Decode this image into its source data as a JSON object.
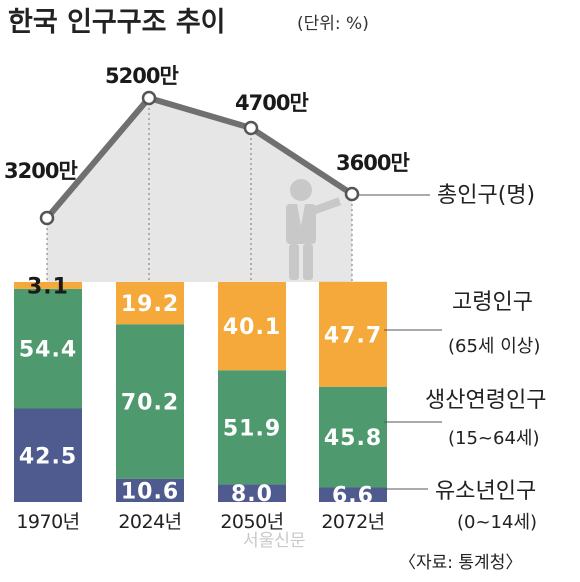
{
  "title": "한국 인구구조 추이",
  "unit_note": "(단위: %)",
  "colors": {
    "elderly": "#F5A93B",
    "working": "#4E9A6E",
    "youth": "#4F5B8E",
    "line": "#707070",
    "area": "#E6E6E6",
    "marker_fill": "#ffffff"
  },
  "chart_data": [
    {
      "type": "line",
      "title": "",
      "series": [
        {
          "name": "총인구(명)",
          "values": [
            3200,
            5200,
            4700,
            3600
          ]
        }
      ],
      "categories": [
        "1970년",
        "2024년",
        "2050년",
        "2072년"
      ],
      "value_labels": [
        "3200만",
        "5200만",
        "4700만",
        "3600만"
      ],
      "ylim": [
        2000,
        5500
      ]
    },
    {
      "type": "bar",
      "stacked": true,
      "categories": [
        "1970년",
        "2024년",
        "2050년",
        "2072년"
      ],
      "series": [
        {
          "name": "유소년인구",
          "range": "(0~14세)",
          "values": [
            42.5,
            10.6,
            8.0,
            6.6
          ],
          "labels": [
            "42.5",
            "10.6",
            "8.0",
            "6.6"
          ]
        },
        {
          "name": "생산연령인구",
          "range": "(15~64세)",
          "values": [
            54.4,
            70.2,
            51.9,
            45.8
          ],
          "labels": [
            "54.4",
            "70.2",
            "51.9",
            "45.8"
          ]
        },
        {
          "name": "고령인구",
          "range": "(65세 이상)",
          "values": [
            3.1,
            19.2,
            40.1,
            47.7
          ],
          "labels": [
            "3.1",
            "19.2",
            "40.1",
            "47.7"
          ]
        }
      ],
      "ylim": [
        0,
        100
      ]
    }
  ],
  "legend": {
    "total": "총인구(명)",
    "elderly": {
      "label": "고령인구",
      "range": "(65세 이상)"
    },
    "working": {
      "label": "생산연령인구",
      "range": "(15~64세)"
    },
    "youth": {
      "label": "유소년인구",
      "range": "(0~14세)"
    }
  },
  "icons": {
    "person": "presenter-person-icon"
  },
  "source": "〈자료: 통계청〉",
  "watermark": "서울신문"
}
